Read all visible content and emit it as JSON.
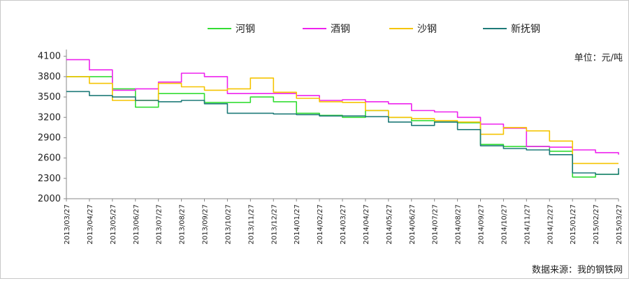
{
  "chart_data": {
    "type": "line",
    "title": "",
    "xlabel": "",
    "ylabel": "",
    "unit_label": "单位：元/吨",
    "source_label": "数据来源：我的钢铁网",
    "ylim": [
      2000,
      4200
    ],
    "yticks": [
      2000,
      2300,
      2600,
      2900,
      3200,
      3500,
      3800,
      4100
    ],
    "categories": [
      "2013/03/27",
      "2013/04/27",
      "2013/05/27",
      "2013/06/27",
      "2013/07/27",
      "2013/08/27",
      "2013/09/27",
      "2013/10/27",
      "2013/11/27",
      "2013/12/27",
      "2014/01/27",
      "2014/02/27",
      "2014/03/27",
      "2014/04/27",
      "2014/05/27",
      "2014/06/27",
      "2014/07/27",
      "2014/08/27",
      "2014/09/27",
      "2014/10/27",
      "2014/11/27",
      "2014/12/27",
      "2015/01/27",
      "2015/02/27",
      "2015/03/27"
    ],
    "legend_position": "top",
    "grid": false,
    "series": [
      {
        "name": "河钢",
        "color": "#33dd33",
        "values": [
          3800,
          3800,
          3620,
          3350,
          3550,
          3550,
          3420,
          3420,
          3500,
          3430,
          3260,
          3230,
          3200,
          3300,
          3200,
          3150,
          3130,
          3120,
          2800,
          2770,
          2770,
          2700,
          2320,
          2360,
          2380
        ]
      },
      {
        "name": "酒钢",
        "color": "#ee22ee",
        "values": [
          4050,
          3900,
          3600,
          3620,
          3720,
          3850,
          3800,
          3550,
          3550,
          3550,
          3520,
          3450,
          3460,
          3430,
          3400,
          3300,
          3280,
          3200,
          3100,
          3040,
          2770,
          2760,
          2720,
          2680,
          2650
        ]
      },
      {
        "name": "沙钢",
        "color": "#f5c400",
        "values": [
          3800,
          3700,
          3450,
          3450,
          3700,
          3650,
          3600,
          3620,
          3780,
          3570,
          3480,
          3430,
          3420,
          3300,
          3200,
          3180,
          3150,
          3130,
          2950,
          3050,
          3000,
          2850,
          2520,
          2520,
          2520
        ]
      },
      {
        "name": "新抚钢",
        "color": "#1e7a78",
        "values": [
          3580,
          3520,
          3500,
          3450,
          3430,
          3450,
          3400,
          3260,
          3260,
          3250,
          3240,
          3220,
          3220,
          3210,
          3130,
          3080,
          3130,
          3020,
          2780,
          2740,
          2720,
          2650,
          2380,
          2360,
          2450
        ]
      }
    ]
  }
}
